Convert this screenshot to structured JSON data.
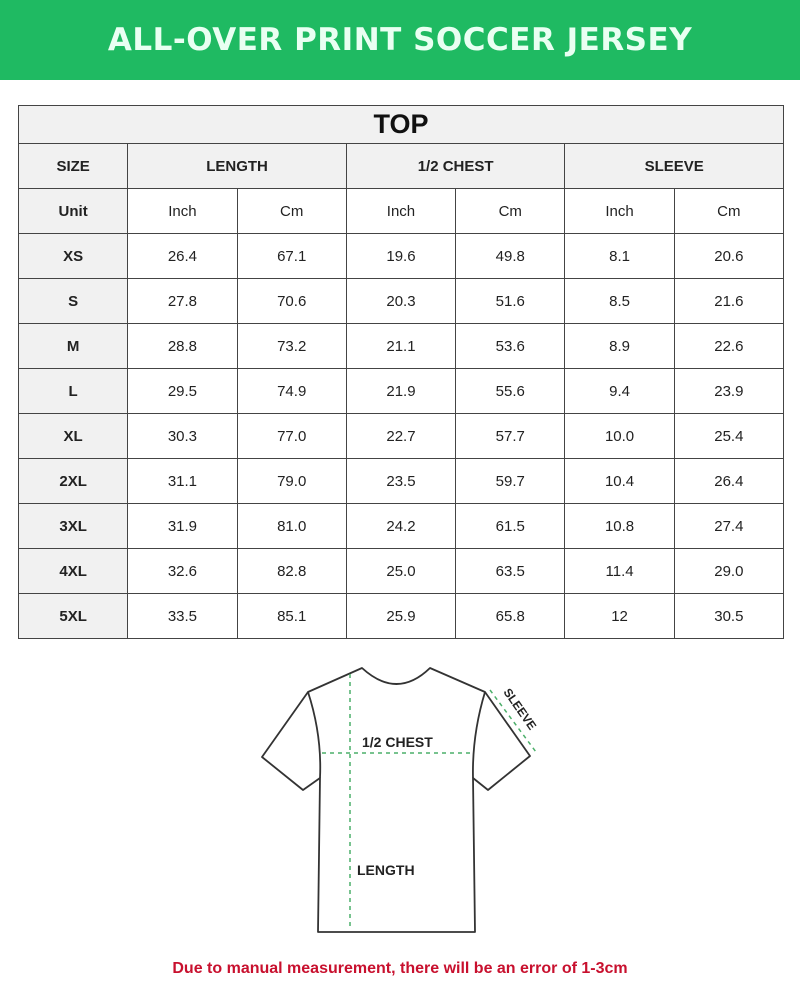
{
  "title": "ALL-OVER PRINT SOCCER JERSEY",
  "section": "TOP",
  "headers": {
    "size": "SIZE",
    "length": "LENGTH",
    "chest": "1/2 CHEST",
    "sleeve": "SLEEVE"
  },
  "units": [
    "Unit",
    "Inch",
    "Cm",
    "Inch",
    "Cm",
    "Inch",
    "Cm"
  ],
  "rows": [
    [
      "XS",
      "26.4",
      "67.1",
      "19.6",
      "49.8",
      "8.1",
      "20.6"
    ],
    [
      "S",
      "27.8",
      "70.6",
      "20.3",
      "51.6",
      "8.5",
      "21.6"
    ],
    [
      "M",
      "28.8",
      "73.2",
      "21.1",
      "53.6",
      "8.9",
      "22.6"
    ],
    [
      "L",
      "29.5",
      "74.9",
      "21.9",
      "55.6",
      "9.4",
      "23.9"
    ],
    [
      "XL",
      "30.3",
      "77.0",
      "22.7",
      "57.7",
      "10.0",
      "25.4"
    ],
    [
      "2XL",
      "31.1",
      "79.0",
      "23.5",
      "59.7",
      "10.4",
      "26.4"
    ],
    [
      "3XL",
      "31.9",
      "81.0",
      "24.2",
      "61.5",
      "10.8",
      "27.4"
    ],
    [
      "4XL",
      "32.6",
      "82.8",
      "25.0",
      "63.5",
      "11.4",
      "29.0"
    ],
    [
      "5XL",
      "33.5",
      "85.1",
      "25.9",
      "65.8",
      "12",
      "30.5"
    ]
  ],
  "diagram": {
    "chest": "1/2 CHEST",
    "length": "LENGTH",
    "sleeve": "SLEEVE"
  },
  "note": "Due to manual measurement, there will be an error of 1-3cm",
  "colors": {
    "banner": "#1fba62",
    "note": "#c8102e",
    "measure_line": "#4caf6a"
  }
}
